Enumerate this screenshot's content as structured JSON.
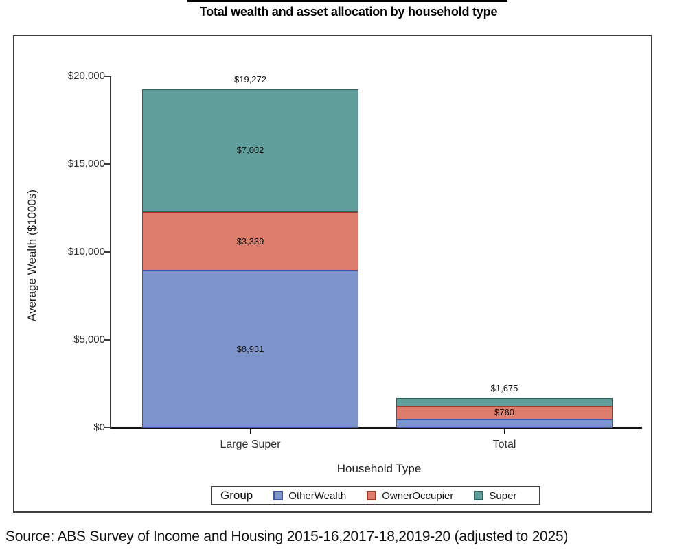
{
  "title": "Total wealth and asset allocation by household type",
  "source": "Source: ABS Survey of Income and Housing 2015-16,2017-18,2019-20 (adjusted to 2025)",
  "chart_data": {
    "type": "bar",
    "stacked": true,
    "title": "Total wealth and asset allocation by household type",
    "xlabel": "Household Type",
    "ylabel": "Average Wealth ($1000s)",
    "categories": [
      "Large Super",
      "Total"
    ],
    "series": [
      {
        "name": "OtherWealth",
        "color": "#7d95cb",
        "border": "#41549f",
        "values": [
          8931,
          465
        ]
      },
      {
        "name": "OwnerOccupier",
        "color": "#dd7d6e",
        "border": "#9c3a2c",
        "values": [
          3339,
          760
        ]
      },
      {
        "name": "Super",
        "color": "#5f9e9a",
        "border": "#2e615e",
        "values": [
          7002,
          450
        ]
      }
    ],
    "totals": [
      19272,
      1675
    ],
    "total_labels": [
      "$19,272",
      "$1,675"
    ],
    "segment_labels": [
      [
        "$8,931",
        "$3,339",
        "$7,002"
      ],
      [
        null,
        "$760",
        null
      ]
    ],
    "ylim": [
      0,
      20000
    ],
    "yticks": [
      0,
      5000,
      10000,
      15000,
      20000
    ],
    "ytick_labels": [
      "$0",
      "$5,000",
      "$10,000",
      "$15,000",
      "$20,000"
    ],
    "legend_title": "Group",
    "legend_position": "bottom",
    "grid": false
  }
}
